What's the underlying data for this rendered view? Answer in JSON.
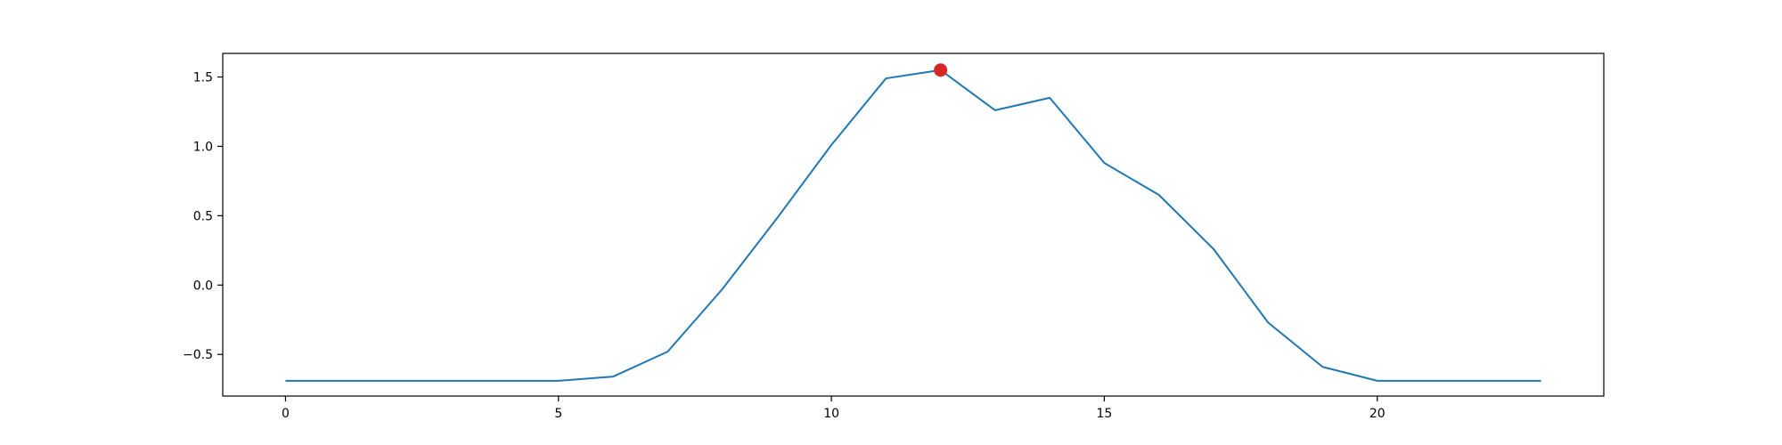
{
  "chart_data": {
    "type": "line",
    "title": "",
    "xlabel": "",
    "ylabel": "",
    "xlim": [
      -1.15,
      24.15
    ],
    "ylim": [
      -0.8,
      1.67
    ],
    "grid": false,
    "x_ticks": [
      0,
      5,
      10,
      15,
      20
    ],
    "x_tick_labels": [
      "0",
      "5",
      "10",
      "15",
      "20"
    ],
    "y_ticks": [
      -0.5,
      0.0,
      0.5,
      1.0,
      1.5
    ],
    "y_tick_labels": [
      "−0.5",
      "0.0",
      "0.5",
      "1.0",
      "1.5"
    ],
    "series": [
      {
        "color": "#1f77b4",
        "x": [
          0,
          1,
          2,
          3,
          4,
          5,
          6,
          7,
          8,
          9,
          10,
          11,
          12,
          13,
          14,
          15,
          16,
          17,
          18,
          19,
          20,
          21,
          22,
          23
        ],
        "y": [
          -0.69,
          -0.69,
          -0.69,
          -0.69,
          -0.69,
          -0.69,
          -0.66,
          -0.48,
          -0.03,
          0.48,
          1.01,
          1.49,
          1.55,
          1.26,
          1.35,
          0.88,
          0.65,
          0.26,
          -0.27,
          -0.59,
          -0.69,
          -0.69,
          -0.69,
          -0.69
        ]
      }
    ],
    "highlight_points": [
      {
        "x": 12,
        "y": 1.55,
        "color": "#d62728"
      }
    ]
  }
}
